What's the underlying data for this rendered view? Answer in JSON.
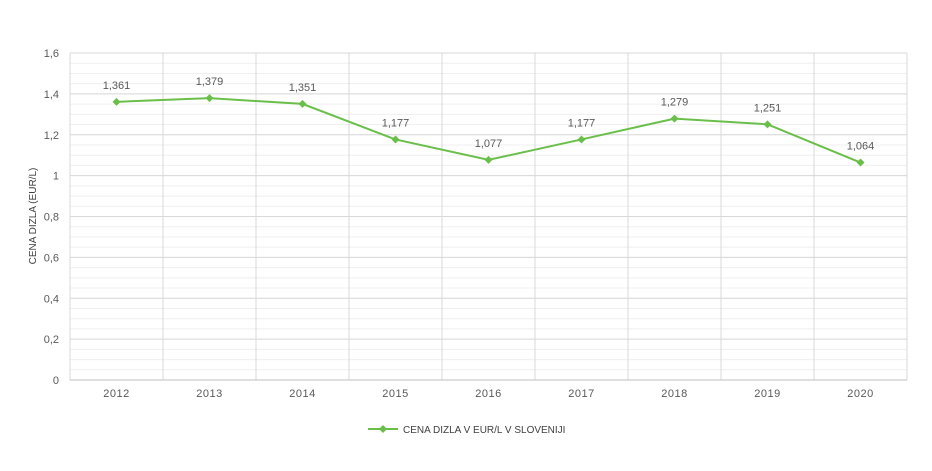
{
  "chart_data": {
    "type": "line",
    "title": "",
    "xlabel": "",
    "ylabel": "CENA DIZLA (EUR/L)",
    "categories": [
      "2012",
      "2013",
      "2014",
      "2015",
      "2016",
      "2017",
      "2018",
      "2019",
      "2020"
    ],
    "series": [
      {
        "name": "CENA DIZLA V EUR/L V SLOVENIJI",
        "values": [
          1.361,
          1.379,
          1.351,
          1.177,
          1.077,
          1.177,
          1.279,
          1.251,
          1.064
        ],
        "labels": [
          "1,361",
          "1,379",
          "1,351",
          "1,177",
          "1,077",
          "1,177",
          "1,279",
          "1,251",
          "1,064"
        ],
        "color": "#6abf4b"
      }
    ],
    "ylim": [
      0,
      1.6
    ],
    "yticks": [
      0,
      0.2,
      0.4,
      0.6,
      0.8,
      1,
      1.2,
      1.4,
      1.6
    ],
    "ytick_labels": [
      "0",
      "0,2",
      "0,4",
      "0,6",
      "0,8",
      "1",
      "1,2",
      "1,4",
      "1,6"
    ],
    "grid": true,
    "legend_position": "bottom",
    "colors": {
      "major_grid": "#d9d9d9",
      "minor_grid": "#efefef",
      "axis": "#bfbfbf"
    }
  }
}
